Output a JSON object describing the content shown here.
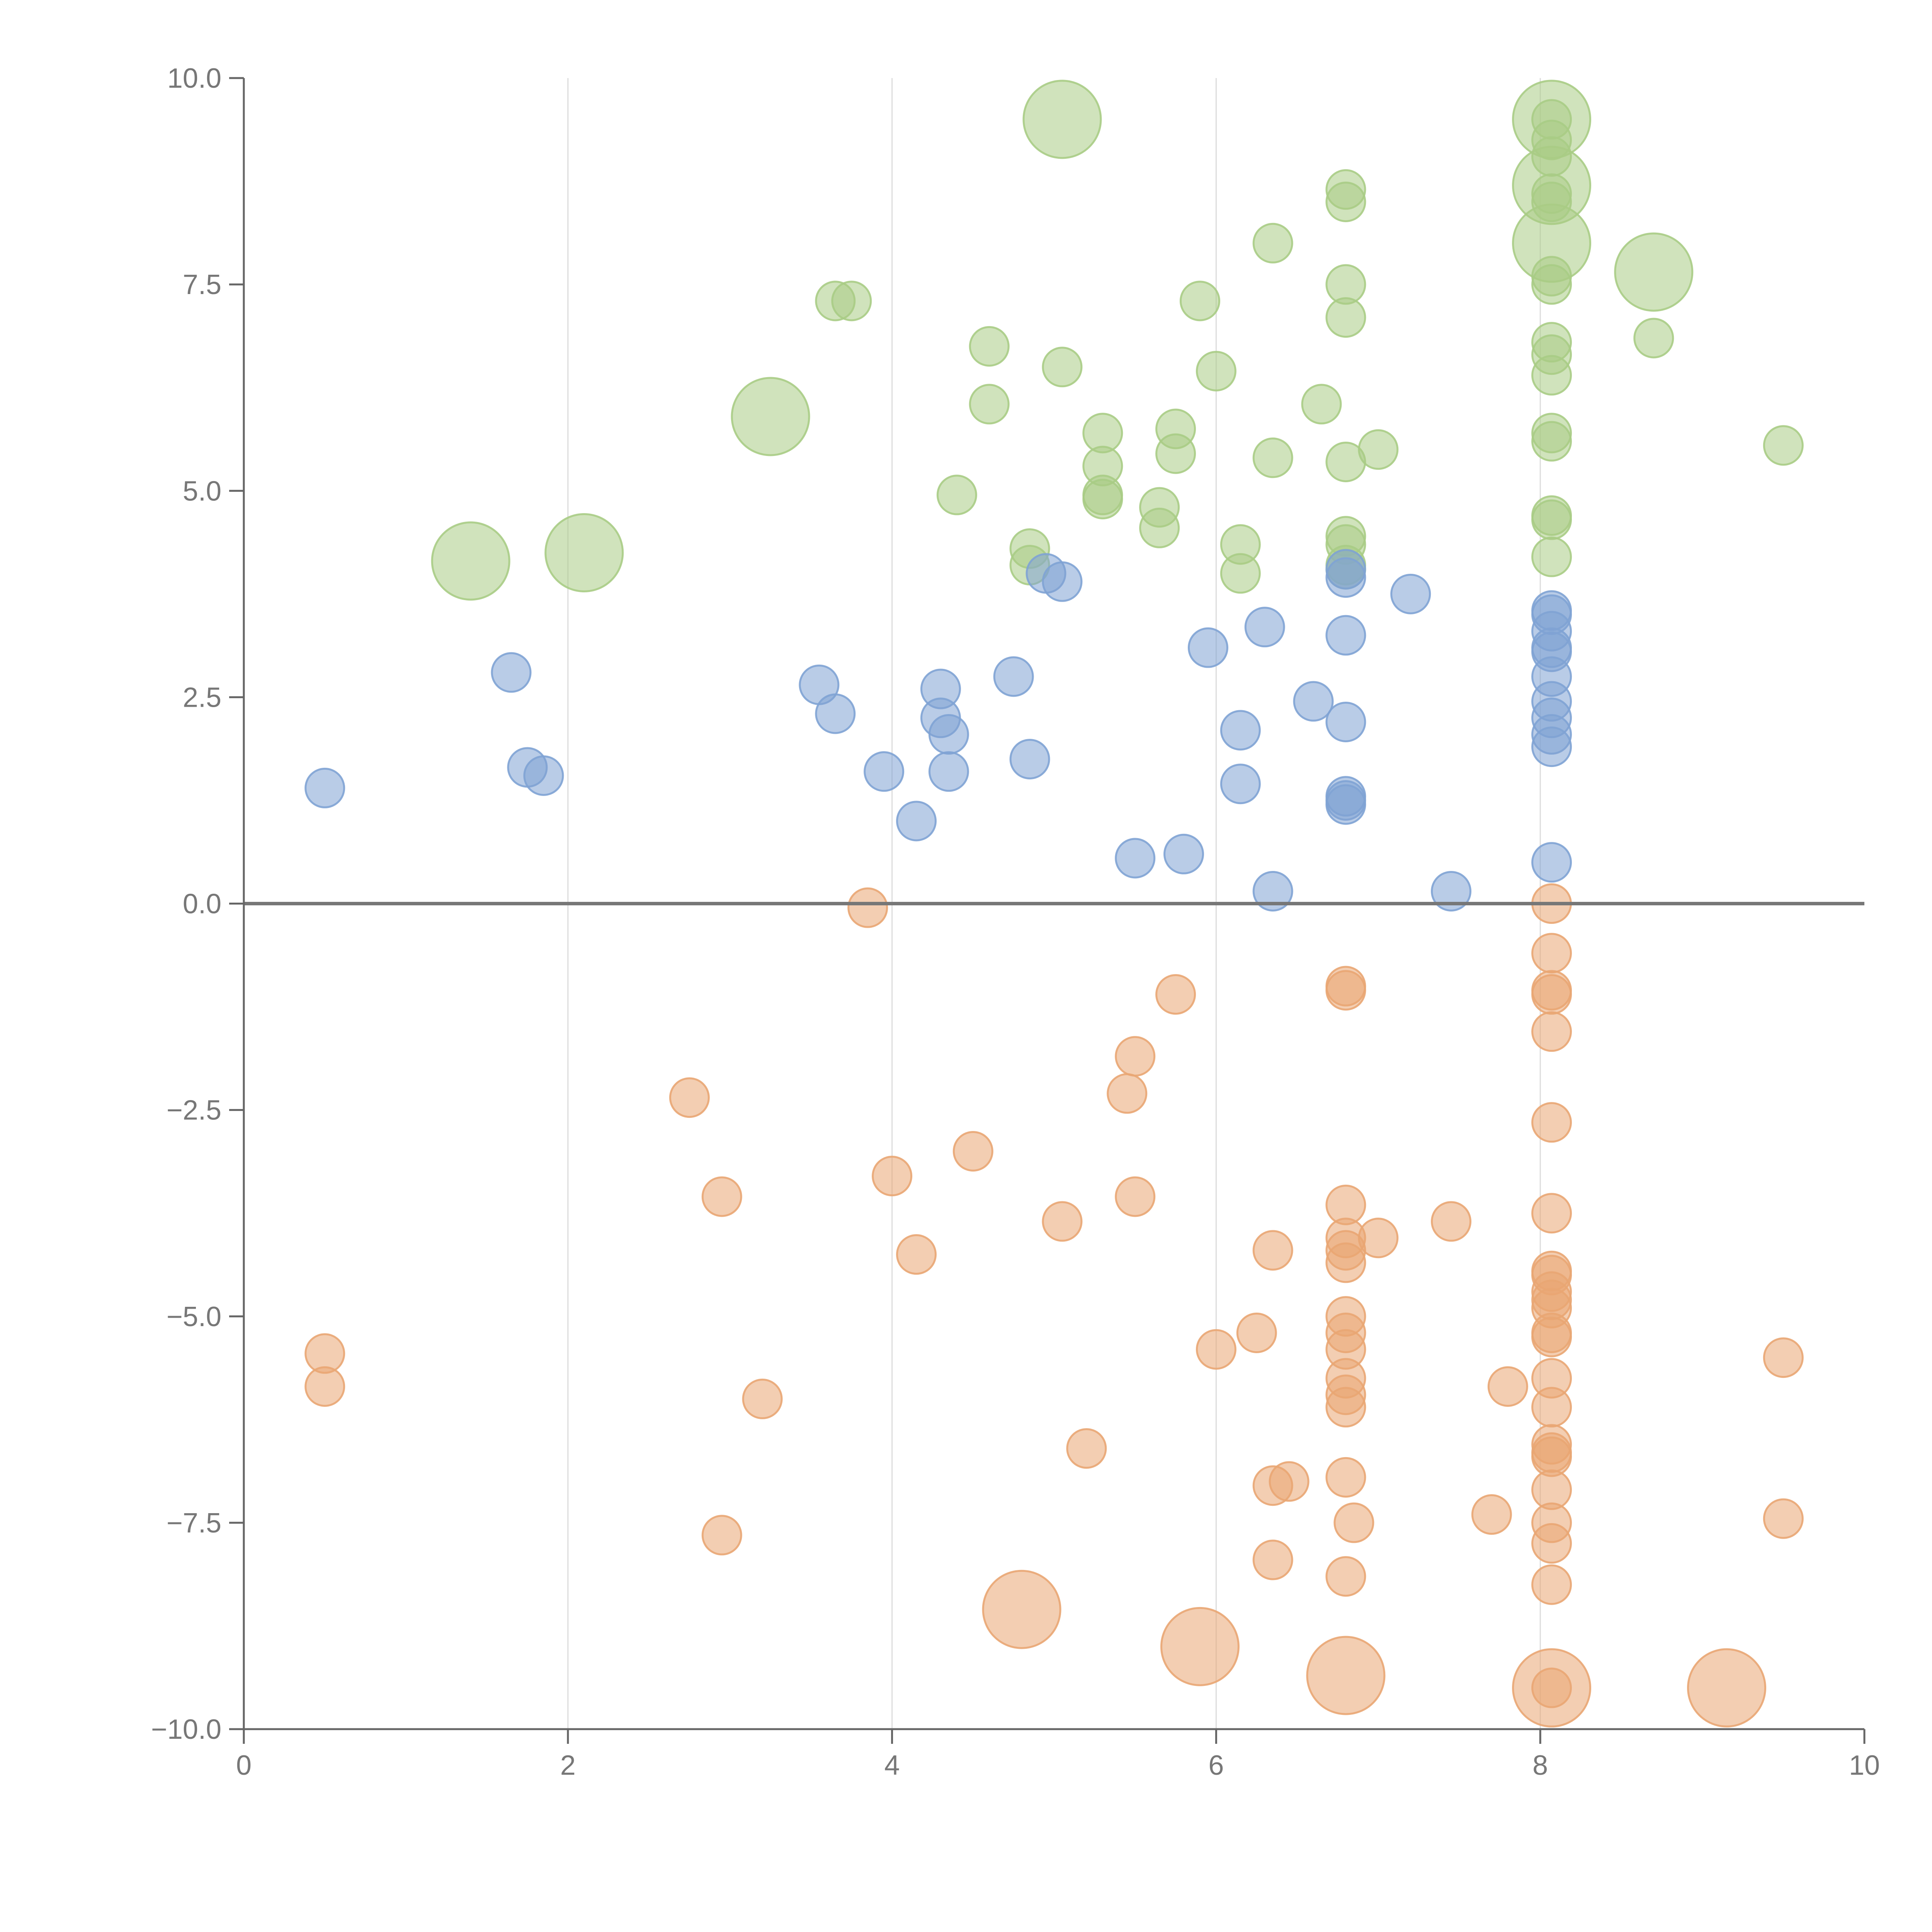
{
  "chart_data": {
    "type": "scatter",
    "title": "",
    "xlabel": "",
    "ylabel": "",
    "xlim": [
      0,
      10
    ],
    "ylim": [
      -10,
      10
    ],
    "x_ticks": [
      0,
      2,
      4,
      6,
      8,
      10
    ],
    "x_tick_labels": [
      "0",
      "2",
      "4",
      "6",
      "8",
      "10"
    ],
    "y_ticks": [
      -10,
      -7.5,
      -5,
      -2.5,
      0,
      2.5,
      5,
      7.5,
      10
    ],
    "y_tick_labels": [
      "−10.0",
      "−7.5",
      "−5.0",
      "−2.5",
      "0.0",
      "2.5",
      "5.0",
      "7.5",
      "10.0"
    ],
    "vertical_gridlines_at": [
      2,
      4,
      6,
      8
    ],
    "zero_line": true,
    "legend": "none",
    "colors": {
      "green": "#a9cc85",
      "blue": "#7fa3d4",
      "orange": "#e9a673",
      "axis": "#666666",
      "grid": "#dcdcdc",
      "zero_line": "#777777"
    },
    "series": [
      {
        "name": "green",
        "color": "#a9cc85",
        "points": [
          {
            "x": 5.05,
            "y": 9.5,
            "size": "large"
          },
          {
            "x": 8.07,
            "y": 9.5,
            "size": "large"
          },
          {
            "x": 8.07,
            "y": 8.7,
            "size": "large"
          },
          {
            "x": 8.07,
            "y": 8.0,
            "size": "large"
          },
          {
            "x": 8.7,
            "y": 7.65,
            "size": "large"
          },
          {
            "x": 3.25,
            "y": 5.9,
            "size": "large"
          },
          {
            "x": 1.4,
            "y": 4.15,
            "size": "large"
          },
          {
            "x": 2.1,
            "y": 4.25,
            "size": "large"
          },
          {
            "x": 8.07,
            "y": 9.5
          },
          {
            "x": 8.07,
            "y": 9.25
          },
          {
            "x": 8.07,
            "y": 9.05
          },
          {
            "x": 8.07,
            "y": 8.6
          },
          {
            "x": 8.07,
            "y": 8.5
          },
          {
            "x": 8.07,
            "y": 7.6
          },
          {
            "x": 8.07,
            "y": 7.5
          },
          {
            "x": 8.07,
            "y": 6.8
          },
          {
            "x": 8.07,
            "y": 6.65
          },
          {
            "x": 8.07,
            "y": 6.4
          },
          {
            "x": 8.07,
            "y": 5.7
          },
          {
            "x": 8.07,
            "y": 5.6
          },
          {
            "x": 8.07,
            "y": 4.7
          },
          {
            "x": 8.07,
            "y": 4.65
          },
          {
            "x": 8.07,
            "y": 4.2
          },
          {
            "x": 6.8,
            "y": 8.65
          },
          {
            "x": 6.8,
            "y": 8.5
          },
          {
            "x": 6.8,
            "y": 7.5
          },
          {
            "x": 6.8,
            "y": 7.1
          },
          {
            "x": 6.8,
            "y": 5.35
          },
          {
            "x": 6.8,
            "y": 4.45
          },
          {
            "x": 6.8,
            "y": 4.35
          },
          {
            "x": 6.8,
            "y": 4.1
          },
          {
            "x": 6.8,
            "y": 4.05
          },
          {
            "x": 8.7,
            "y": 6.85
          },
          {
            "x": 9.5,
            "y": 5.55
          },
          {
            "x": 6.35,
            "y": 8.0
          },
          {
            "x": 6.35,
            "y": 5.4
          },
          {
            "x": 7.0,
            "y": 5.5
          },
          {
            "x": 6.65,
            "y": 6.05
          },
          {
            "x": 3.65,
            "y": 7.3
          },
          {
            "x": 3.75,
            "y": 7.3
          },
          {
            "x": 4.6,
            "y": 6.75
          },
          {
            "x": 4.6,
            "y": 6.05
          },
          {
            "x": 5.05,
            "y": 6.5
          },
          {
            "x": 5.9,
            "y": 7.3
          },
          {
            "x": 6.0,
            "y": 6.45
          },
          {
            "x": 5.3,
            "y": 5.7
          },
          {
            "x": 5.3,
            "y": 5.3
          },
          {
            "x": 5.3,
            "y": 4.95
          },
          {
            "x": 5.3,
            "y": 4.9
          },
          {
            "x": 5.75,
            "y": 5.75
          },
          {
            "x": 5.75,
            "y": 5.45
          },
          {
            "x": 5.65,
            "y": 4.8
          },
          {
            "x": 5.65,
            "y": 4.55
          },
          {
            "x": 4.4,
            "y": 4.95
          },
          {
            "x": 4.85,
            "y": 4.3
          },
          {
            "x": 4.85,
            "y": 4.1
          },
          {
            "x": 6.15,
            "y": 4.35
          },
          {
            "x": 6.15,
            "y": 4.0
          }
        ]
      },
      {
        "name": "blue",
        "color": "#7fa3d4",
        "points": [
          {
            "x": 0.5,
            "y": 1.4
          },
          {
            "x": 1.65,
            "y": 2.8
          },
          {
            "x": 1.75,
            "y": 1.65
          },
          {
            "x": 1.85,
            "y": 1.55
          },
          {
            "x": 3.55,
            "y": 2.65
          },
          {
            "x": 3.65,
            "y": 2.3
          },
          {
            "x": 3.95,
            "y": 1.6
          },
          {
            "x": 4.15,
            "y": 1.0
          },
          {
            "x": 4.3,
            "y": 2.6
          },
          {
            "x": 4.3,
            "y": 2.25
          },
          {
            "x": 4.35,
            "y": 2.05
          },
          {
            "x": 4.35,
            "y": 1.6
          },
          {
            "x": 4.75,
            "y": 2.75
          },
          {
            "x": 4.85,
            "y": 1.75
          },
          {
            "x": 4.95,
            "y": 4.0
          },
          {
            "x": 5.05,
            "y": 3.9
          },
          {
            "x": 5.5,
            "y": 0.55
          },
          {
            "x": 5.8,
            "y": 0.6
          },
          {
            "x": 5.95,
            "y": 3.1
          },
          {
            "x": 6.15,
            "y": 2.1
          },
          {
            "x": 6.15,
            "y": 1.45
          },
          {
            "x": 6.3,
            "y": 3.35
          },
          {
            "x": 6.35,
            "y": 0.15
          },
          {
            "x": 6.6,
            "y": 2.45
          },
          {
            "x": 6.8,
            "y": 4.05
          },
          {
            "x": 6.8,
            "y": 3.95
          },
          {
            "x": 6.8,
            "y": 3.25
          },
          {
            "x": 6.8,
            "y": 2.2
          },
          {
            "x": 6.8,
            "y": 1.3
          },
          {
            "x": 6.8,
            "y": 1.25
          },
          {
            "x": 6.8,
            "y": 1.2
          },
          {
            "x": 7.2,
            "y": 3.75
          },
          {
            "x": 7.45,
            "y": 0.15
          },
          {
            "x": 8.07,
            "y": 3.55
          },
          {
            "x": 8.07,
            "y": 3.5
          },
          {
            "x": 8.07,
            "y": 3.3
          },
          {
            "x": 8.07,
            "y": 3.1
          },
          {
            "x": 8.07,
            "y": 3.05
          },
          {
            "x": 8.07,
            "y": 2.75
          },
          {
            "x": 8.07,
            "y": 2.45
          },
          {
            "x": 8.07,
            "y": 2.25
          },
          {
            "x": 8.07,
            "y": 2.05
          },
          {
            "x": 8.07,
            "y": 1.9
          },
          {
            "x": 8.07,
            "y": 0.5
          }
        ]
      },
      {
        "name": "orange",
        "color": "#e9a673",
        "points": [
          {
            "x": 4.8,
            "y": -8.55,
            "size": "large"
          },
          {
            "x": 5.9,
            "y": -9.0,
            "size": "large"
          },
          {
            "x": 6.8,
            "y": -9.35,
            "size": "large"
          },
          {
            "x": 8.07,
            "y": -9.5,
            "size": "large"
          },
          {
            "x": 9.15,
            "y": -9.5,
            "size": "large"
          },
          {
            "x": 3.85,
            "y": -0.05
          },
          {
            "x": 2.75,
            "y": -2.35
          },
          {
            "x": 2.95,
            "y": -3.55
          },
          {
            "x": 3.2,
            "y": -6.0
          },
          {
            "x": 2.95,
            "y": -7.65
          },
          {
            "x": 0.5,
            "y": -5.45
          },
          {
            "x": 0.5,
            "y": -5.85
          },
          {
            "x": 4.0,
            "y": -3.3
          },
          {
            "x": 4.15,
            "y": -4.25
          },
          {
            "x": 4.5,
            "y": -3.0
          },
          {
            "x": 5.05,
            "y": -3.85
          },
          {
            "x": 5.2,
            "y": -6.6
          },
          {
            "x": 5.45,
            "y": -2.3
          },
          {
            "x": 5.5,
            "y": -1.85
          },
          {
            "x": 5.5,
            "y": -3.55
          },
          {
            "x": 5.75,
            "y": -1.1
          },
          {
            "x": 6.0,
            "y": -5.4
          },
          {
            "x": 6.25,
            "y": -5.2
          },
          {
            "x": 6.35,
            "y": -4.2
          },
          {
            "x": 6.35,
            "y": -7.05
          },
          {
            "x": 6.45,
            "y": -7.0
          },
          {
            "x": 6.35,
            "y": -7.95
          },
          {
            "x": 6.8,
            "y": -1.0
          },
          {
            "x": 6.8,
            "y": -1.05
          },
          {
            "x": 6.8,
            "y": -3.65
          },
          {
            "x": 6.8,
            "y": -4.05
          },
          {
            "x": 6.8,
            "y": -4.2
          },
          {
            "x": 6.8,
            "y": -4.35
          },
          {
            "x": 6.8,
            "y": -5.0
          },
          {
            "x": 6.8,
            "y": -5.2
          },
          {
            "x": 6.8,
            "y": -5.4
          },
          {
            "x": 6.8,
            "y": -5.75
          },
          {
            "x": 6.8,
            "y": -5.95
          },
          {
            "x": 6.8,
            "y": -6.1
          },
          {
            "x": 6.8,
            "y": -6.95
          },
          {
            "x": 6.8,
            "y": -8.15
          },
          {
            "x": 6.85,
            "y": -7.5
          },
          {
            "x": 7.0,
            "y": -4.05
          },
          {
            "x": 7.45,
            "y": -3.85
          },
          {
            "x": 7.7,
            "y": -7.4
          },
          {
            "x": 7.8,
            "y": -5.85
          },
          {
            "x": 8.07,
            "y": 0.0
          },
          {
            "x": 8.07,
            "y": -0.6
          },
          {
            "x": 8.07,
            "y": -1.05
          },
          {
            "x": 8.07,
            "y": -1.1
          },
          {
            "x": 8.07,
            "y": -1.55
          },
          {
            "x": 8.07,
            "y": -2.65
          },
          {
            "x": 8.07,
            "y": -3.75
          },
          {
            "x": 8.07,
            "y": -4.45
          },
          {
            "x": 8.07,
            "y": -4.5
          },
          {
            "x": 8.07,
            "y": -4.7
          },
          {
            "x": 8.07,
            "y": -4.8
          },
          {
            "x": 8.07,
            "y": -4.9
          },
          {
            "x": 8.07,
            "y": -5.2
          },
          {
            "x": 8.07,
            "y": -5.25
          },
          {
            "x": 8.07,
            "y": -5.75
          },
          {
            "x": 8.07,
            "y": -6.1
          },
          {
            "x": 8.07,
            "y": -6.55
          },
          {
            "x": 8.07,
            "y": -6.65
          },
          {
            "x": 8.07,
            "y": -6.7
          },
          {
            "x": 8.07,
            "y": -7.1
          },
          {
            "x": 8.07,
            "y": -7.5
          },
          {
            "x": 8.07,
            "y": -7.75
          },
          {
            "x": 8.07,
            "y": -8.25
          },
          {
            "x": 8.07,
            "y": -9.5
          },
          {
            "x": 9.5,
            "y": -5.5
          },
          {
            "x": 9.5,
            "y": -7.45
          }
        ]
      }
    ]
  }
}
